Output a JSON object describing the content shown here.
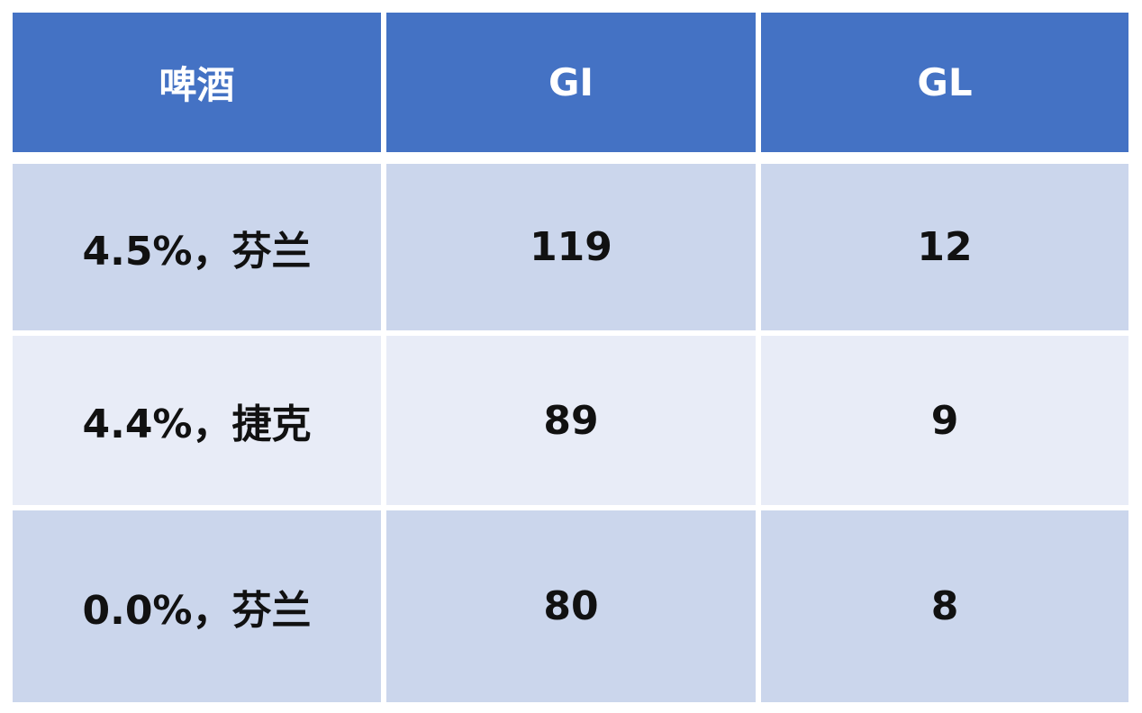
{
  "table": {
    "headers": [
      "啤酒",
      "GI",
      "GL"
    ],
    "rows": [
      [
        "4.5%，芬兰",
        "119",
        "12"
      ],
      [
        "4.4%，捷克",
        "89",
        "9"
      ],
      [
        "0.0%，芬兰",
        "80",
        "8"
      ]
    ]
  },
  "colors": {
    "header_bg": "#4472C4",
    "row_odd_bg": "#CBD6EC",
    "row_even_bg": "#E8ECF7",
    "header_text": "#FFFFFF"
  }
}
